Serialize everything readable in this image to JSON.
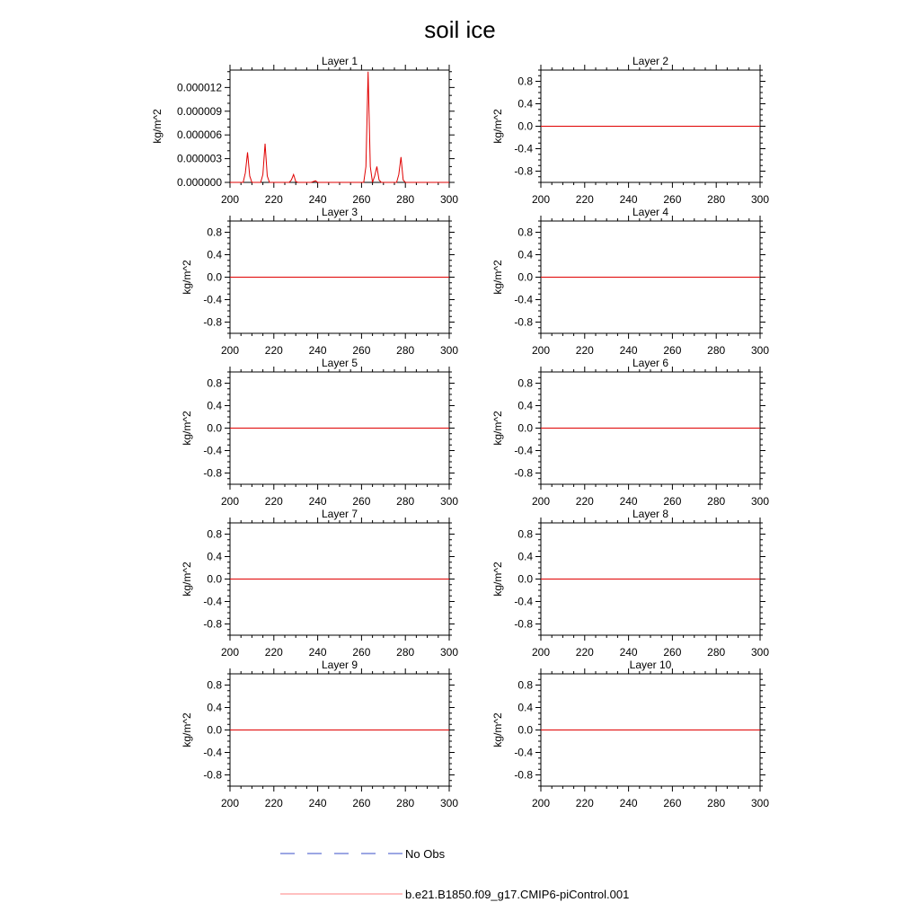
{
  "title": "soil ice",
  "colors": {
    "model_line": "#e00000",
    "obs_line": "#3a4fc8",
    "axis": "#000000",
    "background": "#ffffff"
  },
  "legend": {
    "obs_label": "No Obs",
    "model_label": "b.e21.B1850.f09_g17.CMIP6-piControl.001"
  },
  "chart_data": [
    {
      "type": "line",
      "title": "Layer 1",
      "xlabel": "",
      "ylabel": "kg/m^2",
      "xlim": [
        200,
        300
      ],
      "ylim": [
        0,
        1.42e-05
      ],
      "xticks": [
        200,
        220,
        240,
        260,
        280,
        300
      ],
      "xtick_labels": [
        "200",
        "220",
        "240",
        "260",
        "280",
        "300"
      ],
      "yticks": [
        0,
        3e-06,
        6e-06,
        9e-06,
        1.2e-05
      ],
      "ytick_labels": [
        "0.000000",
        "0.000003",
        "0.000006",
        "0.000009",
        "0.000012"
      ],
      "series": [
        {
          "name": "b.e21.B1850.f09_g17.CMIP6-piControl.001",
          "x": [
            200,
            206,
            207,
            208,
            209,
            210,
            214,
            215,
            216,
            217,
            218,
            227,
            228,
            229,
            230,
            231,
            237,
            238,
            239,
            240,
            261,
            262,
            263,
            264,
            265,
            266,
            267,
            268,
            269,
            276,
            277,
            278,
            279,
            280,
            300
          ],
          "values": [
            0,
            0,
            1.2e-06,
            3.8e-06,
            8e-07,
            0,
            0,
            1e-06,
            4.9e-06,
            8e-07,
            0,
            0,
            3e-07,
            1e-06,
            1e-07,
            0,
            0,
            1e-07,
            2e-07,
            0,
            0,
            2e-06,
            1.4e-05,
            2e-06,
            0,
            8e-07,
            2e-06,
            3e-07,
            0,
            0,
            1e-06,
            3.2e-06,
            3e-07,
            0,
            0
          ]
        }
      ]
    },
    {
      "type": "line",
      "title": "Layer 2",
      "xlabel": "",
      "ylabel": "kg/m^2",
      "xlim": [
        200,
        300
      ],
      "ylim": [
        -1,
        1
      ],
      "xticks": [
        200,
        220,
        240,
        260,
        280,
        300
      ],
      "xtick_labels": [
        "200",
        "220",
        "240",
        "260",
        "280",
        "300"
      ],
      "yticks": [
        0.8,
        0.4,
        0.0,
        -0.4,
        -0.8
      ],
      "ytick_labels": [
        "0.8",
        "0.4",
        "0.0",
        "-0.4",
        "-0.8"
      ],
      "series": [
        {
          "name": "b.e21.B1850.f09_g17.CMIP6-piControl.001",
          "x": [
            200,
            300
          ],
          "values": [
            0,
            0
          ]
        }
      ]
    },
    {
      "type": "line",
      "title": "Layer 3",
      "xlabel": "",
      "ylabel": "kg/m^2",
      "xlim": [
        200,
        300
      ],
      "ylim": [
        -1,
        1
      ],
      "xticks": [
        200,
        220,
        240,
        260,
        280,
        300
      ],
      "xtick_labels": [
        "200",
        "220",
        "240",
        "260",
        "280",
        "300"
      ],
      "yticks": [
        0.8,
        0.4,
        0.0,
        -0.4,
        -0.8
      ],
      "ytick_labels": [
        "0.8",
        "0.4",
        "0.0",
        "-0.4",
        "-0.8"
      ],
      "series": [
        {
          "name": "b.e21.B1850.f09_g17.CMIP6-piControl.001",
          "x": [
            200,
            300
          ],
          "values": [
            0,
            0
          ]
        }
      ]
    },
    {
      "type": "line",
      "title": "Layer 4",
      "xlabel": "",
      "ylabel": "kg/m^2",
      "xlim": [
        200,
        300
      ],
      "ylim": [
        -1,
        1
      ],
      "xticks": [
        200,
        220,
        240,
        260,
        280,
        300
      ],
      "xtick_labels": [
        "200",
        "220",
        "240",
        "260",
        "280",
        "300"
      ],
      "yticks": [
        0.8,
        0.4,
        0.0,
        -0.4,
        -0.8
      ],
      "ytick_labels": [
        "0.8",
        "0.4",
        "0.0",
        "-0.4",
        "-0.8"
      ],
      "series": [
        {
          "name": "b.e21.B1850.f09_g17.CMIP6-piControl.001",
          "x": [
            200,
            300
          ],
          "values": [
            0,
            0
          ]
        }
      ]
    },
    {
      "type": "line",
      "title": "Layer 5",
      "xlabel": "",
      "ylabel": "kg/m^2",
      "xlim": [
        200,
        300
      ],
      "ylim": [
        -1,
        1
      ],
      "xticks": [
        200,
        220,
        240,
        260,
        280,
        300
      ],
      "xtick_labels": [
        "200",
        "220",
        "240",
        "260",
        "280",
        "300"
      ],
      "yticks": [
        0.8,
        0.4,
        0.0,
        -0.4,
        -0.8
      ],
      "ytick_labels": [
        "0.8",
        "0.4",
        "0.0",
        "-0.4",
        "-0.8"
      ],
      "series": [
        {
          "name": "b.e21.B1850.f09_g17.CMIP6-piControl.001",
          "x": [
            200,
            300
          ],
          "values": [
            0,
            0
          ]
        }
      ]
    },
    {
      "type": "line",
      "title": "Layer 6",
      "xlabel": "",
      "ylabel": "kg/m^2",
      "xlim": [
        200,
        300
      ],
      "ylim": [
        -1,
        1
      ],
      "xticks": [
        200,
        220,
        240,
        260,
        280,
        300
      ],
      "xtick_labels": [
        "200",
        "220",
        "240",
        "260",
        "280",
        "300"
      ],
      "yticks": [
        0.8,
        0.4,
        0.0,
        -0.4,
        -0.8
      ],
      "ytick_labels": [
        "0.8",
        "0.4",
        "0.0",
        "-0.4",
        "-0.8"
      ],
      "series": [
        {
          "name": "b.e21.B1850.f09_g17.CMIP6-piControl.001",
          "x": [
            200,
            300
          ],
          "values": [
            0,
            0
          ]
        }
      ]
    },
    {
      "type": "line",
      "title": "Layer 7",
      "xlabel": "",
      "ylabel": "kg/m^2",
      "xlim": [
        200,
        300
      ],
      "ylim": [
        -1,
        1
      ],
      "xticks": [
        200,
        220,
        240,
        260,
        280,
        300
      ],
      "xtick_labels": [
        "200",
        "220",
        "240",
        "260",
        "280",
        "300"
      ],
      "yticks": [
        0.8,
        0.4,
        0.0,
        -0.4,
        -0.8
      ],
      "ytick_labels": [
        "0.8",
        "0.4",
        "0.0",
        "-0.4",
        "-0.8"
      ],
      "series": [
        {
          "name": "b.e21.B1850.f09_g17.CMIP6-piControl.001",
          "x": [
            200,
            300
          ],
          "values": [
            0,
            0
          ]
        }
      ]
    },
    {
      "type": "line",
      "title": "Layer 8",
      "xlabel": "",
      "ylabel": "kg/m^2",
      "xlim": [
        200,
        300
      ],
      "ylim": [
        -1,
        1
      ],
      "xticks": [
        200,
        220,
        240,
        260,
        280,
        300
      ],
      "xtick_labels": [
        "200",
        "220",
        "240",
        "260",
        "280",
        "300"
      ],
      "yticks": [
        0.8,
        0.4,
        0.0,
        -0.4,
        -0.8
      ],
      "ytick_labels": [
        "0.8",
        "0.4",
        "0.0",
        "-0.4",
        "-0.8"
      ],
      "series": [
        {
          "name": "b.e21.B1850.f09_g17.CMIP6-piControl.001",
          "x": [
            200,
            300
          ],
          "values": [
            0,
            0
          ]
        }
      ]
    },
    {
      "type": "line",
      "title": "Layer 9",
      "xlabel": "",
      "ylabel": "kg/m^2",
      "xlim": [
        200,
        300
      ],
      "ylim": [
        -1,
        1
      ],
      "xticks": [
        200,
        220,
        240,
        260,
        280,
        300
      ],
      "xtick_labels": [
        "200",
        "220",
        "240",
        "260",
        "280",
        "300"
      ],
      "yticks": [
        0.8,
        0.4,
        0.0,
        -0.4,
        -0.8
      ],
      "ytick_labels": [
        "0.8",
        "0.4",
        "0.0",
        "-0.4",
        "-0.8"
      ],
      "series": [
        {
          "name": "b.e21.B1850.f09_g17.CMIP6-piControl.001",
          "x": [
            200,
            300
          ],
          "values": [
            0,
            0
          ]
        }
      ]
    },
    {
      "type": "line",
      "title": "Layer 10",
      "xlabel": "",
      "ylabel": "kg/m^2",
      "xlim": [
        200,
        300
      ],
      "ylim": [
        -1,
        1
      ],
      "xticks": [
        200,
        220,
        240,
        260,
        280,
        300
      ],
      "xtick_labels": [
        "200",
        "220",
        "240",
        "260",
        "280",
        "300"
      ],
      "yticks": [
        0.8,
        0.4,
        0.0,
        -0.4,
        -0.8
      ],
      "ytick_labels": [
        "0.8",
        "0.4",
        "0.0",
        "-0.4",
        "-0.8"
      ],
      "series": [
        {
          "name": "b.e21.B1850.f09_g17.CMIP6-piControl.001",
          "x": [
            200,
            300
          ],
          "values": [
            0,
            0
          ]
        }
      ]
    }
  ]
}
